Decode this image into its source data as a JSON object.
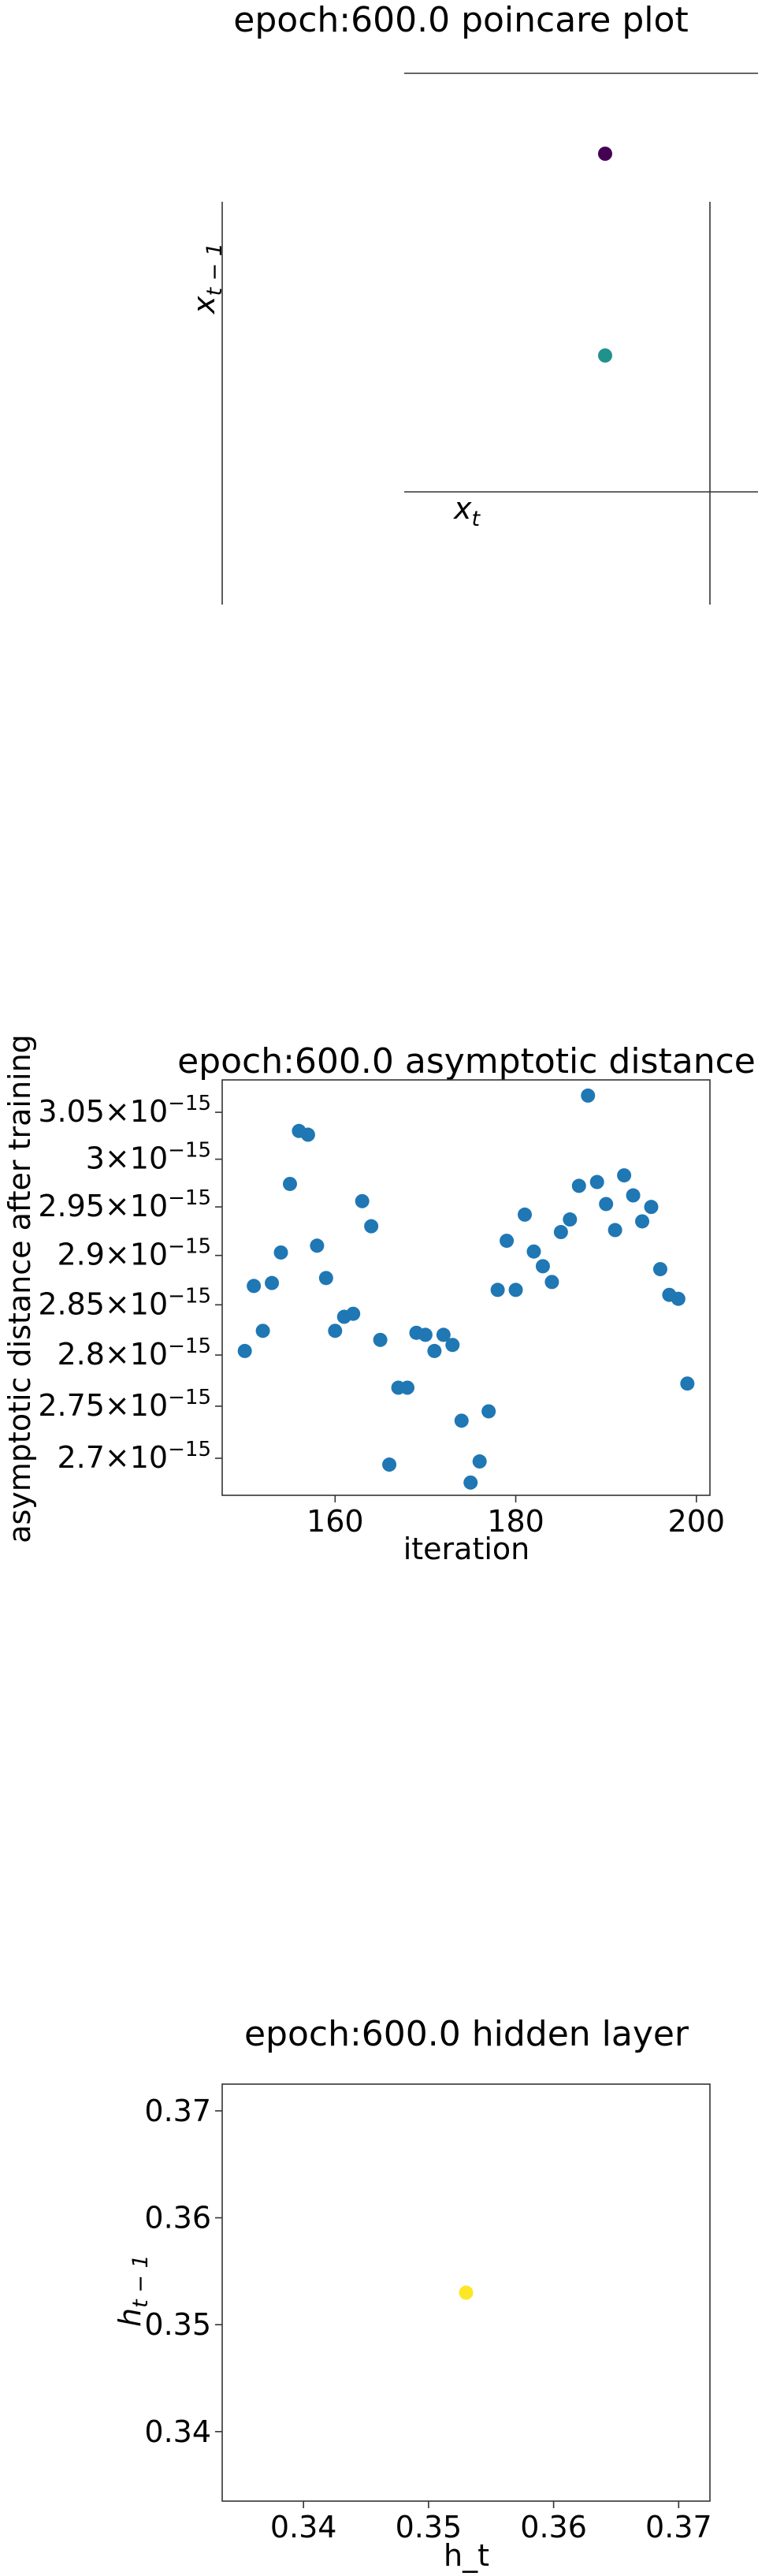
{
  "chart_data": [
    {
      "type": "scatter",
      "title": "epoch:600.0 poincare plot",
      "xlabel": "x_t",
      "ylabel": "x_{t−1}",
      "spines": "centered",
      "ticks": "none",
      "points": [
        {
          "label": "upper point",
          "color": "#440154"
        },
        {
          "label": "lower point",
          "color": "#21918c"
        }
      ]
    },
    {
      "type": "scatter",
      "title": "epoch:600.0 asymptotic distance",
      "xlabel": "iteration",
      "ylabel": "asymptotic distance after training",
      "y_scale": "log",
      "xlim": [
        147.5,
        201.5
      ],
      "ylim": [
        2.665e-15,
        3.085e-15
      ],
      "xticks": [
        160,
        180,
        200
      ],
      "yticks": [
        2.7e-15,
        2.75e-15,
        2.8e-15,
        2.85e-15,
        2.9e-15,
        2.95e-15,
        3e-15,
        3.05e-15
      ],
      "ytick_labels": [
        {
          "mant": "2.7",
          "exp": "−15"
        },
        {
          "mant": "2.75",
          "exp": "−15"
        },
        {
          "mant": "2.8",
          "exp": "−15"
        },
        {
          "mant": "2.85",
          "exp": "−15"
        },
        {
          "mant": "2.9",
          "exp": "−15"
        },
        {
          "mant": "2.95",
          "exp": "−15"
        },
        {
          "mant": "3",
          "exp": "−15"
        },
        {
          "mant": "3.05",
          "exp": "−15"
        }
      ],
      "color": "#1f77b4",
      "x": [
        150,
        151,
        152,
        153,
        154,
        155,
        156,
        157,
        158,
        159,
        160,
        161,
        162,
        163,
        164,
        165,
        166,
        167,
        168,
        169,
        170,
        171,
        172,
        173,
        174,
        175,
        176,
        177,
        178,
        179,
        180,
        181,
        182,
        183,
        184,
        185,
        186,
        187,
        188,
        189,
        190,
        191,
        192,
        193,
        194,
        195,
        196,
        197,
        198,
        199
      ],
      "y": [
        2.804e-15,
        2.869e-15,
        2.824e-15,
        2.872e-15,
        2.903e-15,
        2.974e-15,
        3.03e-15,
        3.026e-15,
        2.91e-15,
        2.877e-15,
        2.824e-15,
        2.838e-15,
        2.841e-15,
        2.956e-15,
        2.93e-15,
        2.815e-15,
        2.694e-15,
        2.768e-15,
        2.768e-15,
        2.822e-15,
        2.82e-15,
        2.804e-15,
        2.82e-15,
        2.81e-15,
        2.736e-15,
        2.677e-15,
        2.697e-15,
        2.745e-15,
        2.865e-15,
        2.915e-15,
        2.865e-15,
        2.942e-15,
        2.904e-15,
        2.889e-15,
        2.873e-15,
        2.924e-15,
        2.937e-15,
        2.972e-15,
        3.068e-15,
        2.976e-15,
        2.953e-15,
        2.926e-15,
        2.983e-15,
        2.962e-15,
        2.935e-15,
        2.95e-15,
        2.886e-15,
        2.86e-15,
        2.856e-15,
        2.772e-15
      ]
    },
    {
      "type": "scatter",
      "title": "epoch:600.0 hidden layer",
      "xlabel": "h_t",
      "ylabel": "h_{t−1}",
      "xlim": [
        0.3335,
        0.3725
      ],
      "ylim": [
        0.3335,
        0.3725
      ],
      "xticks": [
        0.34,
        0.35,
        0.36,
        0.37
      ],
      "yticks": [
        0.34,
        0.35,
        0.36,
        0.37
      ],
      "tick_labels": [
        "0.34",
        "0.35",
        "0.36",
        "0.37"
      ],
      "color": "#fde725",
      "x": [
        0.353
      ],
      "y": [
        0.353
      ]
    }
  ]
}
